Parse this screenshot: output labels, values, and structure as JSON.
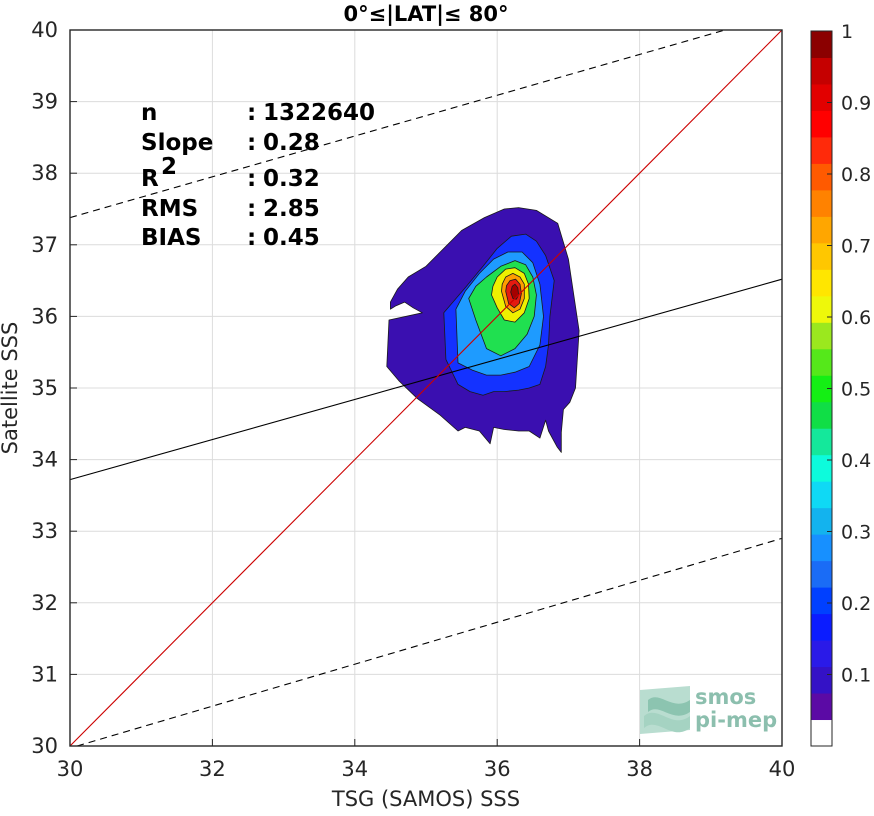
{
  "chart_data": {
    "type": "scatter",
    "title": "0°≤|LAT|≤ 80°",
    "xlabel": "TSG (SAMOS) SSS",
    "ylabel": "Satellite SSS",
    "xlim": [
      30,
      40
    ],
    "ylim": [
      30,
      40
    ],
    "xticks": [
      "30",
      "32",
      "34",
      "36",
      "38",
      "40"
    ],
    "yticks": [
      "30",
      "31",
      "32",
      "33",
      "34",
      "35",
      "36",
      "37",
      "38",
      "39",
      "40"
    ],
    "grid": true,
    "stats": [
      {
        "label": "n",
        "sep": ": ",
        "value": "1322640"
      },
      {
        "label": "Slope",
        "sep": ": ",
        "value": "0.28"
      },
      {
        "label": "R",
        "sup": "2",
        "sep": ": ",
        "value": "0.32"
      },
      {
        "label": "RMS",
        "sep": ": ",
        "value": "2.85"
      },
      {
        "label": "BIAS",
        "sep": ": ",
        "value": "0.45"
      }
    ],
    "lines": {
      "identity": {
        "from": [
          30,
          30
        ],
        "to": [
          40,
          40
        ],
        "color": "#cc0000"
      },
      "regression": {
        "slope": 0.28,
        "from_x": 30,
        "to_x": 40,
        "y_at_30": 33.72,
        "color": "#000000"
      },
      "upper_bound": {
        "from": [
          30,
          37.38
        ],
        "to": [
          39.2,
          40
        ],
        "color": "#000000",
        "dashed": true
      },
      "lower_bound": {
        "from": [
          30.1,
          30
        ],
        "to": [
          40,
          32.9
        ],
        "color": "#000000",
        "dashed": true
      }
    },
    "density": {
      "peak": [
        36.25,
        36.33
      ],
      "levels": [
        {
          "level": 0.05,
          "color": "#3a0fb0",
          "x": [
            34.95,
            34.48,
            34.45,
            34.62,
            34.88,
            35.2,
            35.45,
            35.55,
            35.75,
            35.9,
            35.95,
            36.1,
            36.3,
            36.45,
            36.6,
            36.68,
            36.72,
            36.84,
            36.9,
            36.9,
            36.93,
            37.02,
            37.1,
            37.15,
            37.0,
            36.85,
            36.55,
            36.3,
            36.1,
            35.82,
            35.5,
            35.3,
            35.0,
            34.75,
            34.6,
            34.5,
            34.5,
            34.58,
            34.7,
            34.82,
            34.95
          ],
          "y": [
            36.05,
            35.95,
            35.3,
            35.1,
            34.85,
            34.62,
            34.4,
            34.45,
            34.4,
            34.22,
            34.45,
            34.42,
            34.4,
            34.4,
            34.3,
            34.55,
            34.4,
            34.18,
            34.1,
            34.38,
            34.7,
            34.8,
            35.0,
            35.8,
            36.8,
            37.3,
            37.48,
            37.52,
            37.5,
            37.38,
            37.2,
            37.0,
            36.7,
            36.55,
            36.38,
            36.2,
            36.1,
            36.15,
            36.2,
            36.12,
            36.05
          ]
        },
        {
          "level": 0.15,
          "color": "#1432ff",
          "x": [
            35.25,
            35.28,
            35.45,
            35.62,
            35.8,
            35.95,
            36.1,
            36.3,
            36.45,
            36.6,
            36.68,
            36.72,
            36.74,
            36.8,
            36.68,
            36.55,
            36.4,
            36.2,
            36.0,
            35.8,
            35.55,
            35.25
          ],
          "y": [
            36.05,
            35.4,
            35.05,
            34.95,
            34.9,
            34.95,
            34.95,
            34.97,
            35.0,
            35.05,
            35.3,
            35.6,
            36.0,
            36.5,
            36.85,
            37.05,
            37.15,
            37.12,
            36.95,
            36.7,
            36.4,
            36.05
          ]
        },
        {
          "level": 0.3,
          "color": "#1e9bff",
          "x": [
            35.42,
            35.45,
            35.65,
            35.85,
            36.05,
            36.25,
            36.45,
            36.6,
            36.65,
            36.6,
            36.5,
            36.35,
            36.15,
            35.95,
            35.75,
            35.55,
            35.42
          ],
          "y": [
            36.1,
            35.35,
            35.25,
            35.18,
            35.18,
            35.22,
            35.3,
            35.6,
            36.0,
            36.45,
            36.75,
            36.9,
            36.9,
            36.8,
            36.6,
            36.35,
            36.1
          ]
        },
        {
          "level": 0.45,
          "color": "#20e050",
          "x": [
            35.6,
            35.7,
            35.85,
            36.05,
            36.25,
            36.42,
            36.52,
            36.55,
            36.5,
            36.4,
            36.25,
            36.05,
            35.85,
            35.7,
            35.6
          ],
          "y": [
            36.25,
            35.95,
            35.55,
            35.45,
            35.55,
            35.75,
            36.0,
            36.3,
            36.55,
            36.72,
            36.78,
            36.7,
            36.55,
            36.42,
            36.25
          ]
        },
        {
          "level": 0.6,
          "color": "#eef000",
          "x": [
            35.92,
            36.0,
            36.1,
            36.25,
            36.38,
            36.45,
            36.44,
            36.38,
            36.25,
            36.12,
            36.0,
            35.94,
            35.92
          ],
          "y": [
            36.3,
            36.12,
            35.95,
            35.92,
            36.05,
            36.25,
            36.45,
            36.6,
            36.68,
            36.66,
            36.55,
            36.42,
            36.3
          ]
        },
        {
          "level": 0.75,
          "color": "#ff9d00",
          "x": [
            36.06,
            36.12,
            36.22,
            36.32,
            36.38,
            36.38,
            36.32,
            36.22,
            36.12,
            36.07,
            36.06
          ],
          "y": [
            36.35,
            36.14,
            36.05,
            36.1,
            36.25,
            36.45,
            36.55,
            36.6,
            36.55,
            36.45,
            36.35
          ]
        },
        {
          "level": 0.9,
          "color": "#e41a10",
          "x": [
            36.12,
            36.16,
            36.24,
            36.31,
            36.34,
            36.32,
            36.26,
            36.18,
            36.13,
            36.12
          ],
          "y": [
            36.35,
            36.18,
            36.12,
            36.18,
            36.32,
            36.45,
            36.52,
            36.5,
            36.43,
            36.35
          ]
        },
        {
          "level": 0.97,
          "color": "#a50000",
          "x": [
            36.19,
            36.22,
            36.27,
            36.3,
            36.29,
            36.25,
            36.21,
            36.19
          ],
          "y": [
            36.34,
            36.25,
            36.24,
            36.3,
            36.4,
            36.45,
            36.42,
            36.34
          ]
        }
      ]
    },
    "colorbar": {
      "ticks": [
        "0.1",
        "0.2",
        "0.3",
        "0.4",
        "0.5",
        "0.6",
        "0.7",
        "0.8",
        "0.9",
        "1"
      ],
      "colors": [
        "#ffffff",
        "#5b0aa5",
        "#3412c6",
        "#2a1ae8",
        "#0b1cff",
        "#0040ff",
        "#1a6cf6",
        "#1790ff",
        "#13b3ee",
        "#0fd9f5",
        "#0dfbdc",
        "#14e89b",
        "#10de46",
        "#14ef14",
        "#55e81a",
        "#9be81e",
        "#eef80a",
        "#ffe600",
        "#ffc700",
        "#ffa600",
        "#ff8200",
        "#ff5a00",
        "#ff2a0a",
        "#ff0000",
        "#e20000",
        "#c50000",
        "#8b0000"
      ]
    }
  },
  "logo": {
    "line1": "smos",
    "line2": "pi-mep"
  }
}
